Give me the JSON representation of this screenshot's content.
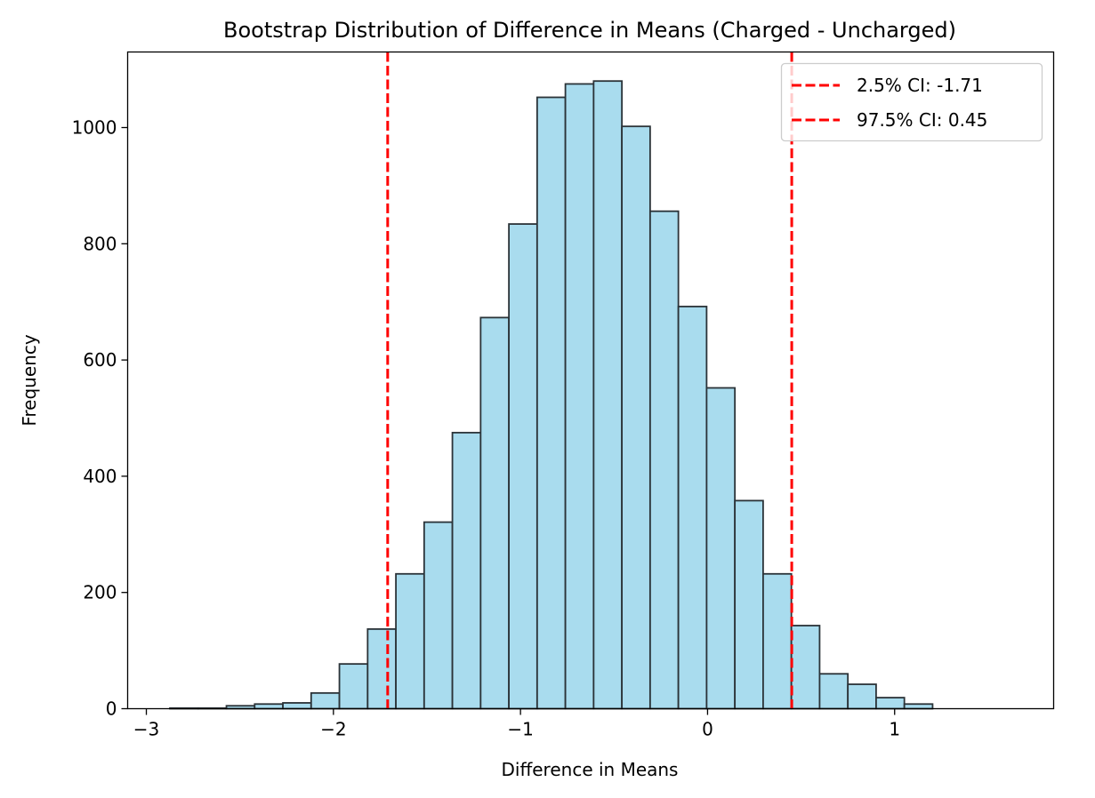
{
  "chart_data": {
    "type": "bar",
    "title": "Bootstrap Distribution of Difference in Means (Charged - Uncharged)",
    "xlabel": "Difference in Means",
    "ylabel": "Frequency",
    "xlim": [
      -3.1,
      1.85
    ],
    "ylim": [
      0,
      1130
    ],
    "x_ticks": [
      {
        "value": -3,
        "label": "−3"
      },
      {
        "value": -2,
        "label": "−2"
      },
      {
        "value": -1,
        "label": "−1"
      },
      {
        "value": 0,
        "label": "0"
      },
      {
        "value": 1,
        "label": "1"
      }
    ],
    "y_ticks": [
      {
        "value": 0,
        "label": "0"
      },
      {
        "value": 200,
        "label": "200"
      },
      {
        "value": 400,
        "label": "400"
      },
      {
        "value": 600,
        "label": "600"
      },
      {
        "value": 800,
        "label": "800"
      },
      {
        "value": 1000,
        "label": "1000"
      }
    ],
    "bin_width": 0.151,
    "bins": [
      {
        "x0": -2.874,
        "count": 1
      },
      {
        "x0": -2.723,
        "count": 1
      },
      {
        "x0": -2.572,
        "count": 5
      },
      {
        "x0": -2.421,
        "count": 8
      },
      {
        "x0": -2.27,
        "count": 10
      },
      {
        "x0": -2.119,
        "count": 27
      },
      {
        "x0": -1.968,
        "count": 77
      },
      {
        "x0": -1.817,
        "count": 137
      },
      {
        "x0": -1.666,
        "count": 232
      },
      {
        "x0": -1.515,
        "count": 321
      },
      {
        "x0": -1.364,
        "count": 475
      },
      {
        "x0": -1.213,
        "count": 673
      },
      {
        "x0": -1.062,
        "count": 834
      },
      {
        "x0": -0.911,
        "count": 1052
      },
      {
        "x0": -0.76,
        "count": 1075
      },
      {
        "x0": -0.609,
        "count": 1080
      },
      {
        "x0": -0.458,
        "count": 1002
      },
      {
        "x0": -0.307,
        "count": 856
      },
      {
        "x0": -0.156,
        "count": 692
      },
      {
        "x0": -0.005,
        "count": 552
      },
      {
        "x0": 0.146,
        "count": 358
      },
      {
        "x0": 0.297,
        "count": 232
      },
      {
        "x0": 0.448,
        "count": 143
      },
      {
        "x0": 0.599,
        "count": 60
      },
      {
        "x0": 0.75,
        "count": 42
      },
      {
        "x0": 0.901,
        "count": 19
      },
      {
        "x0": 1.052,
        "count": 8
      }
    ],
    "bar_fill": "#a9dcee",
    "bar_edge": "#2b3338",
    "reference_lines": [
      {
        "x": -1.71,
        "label": "2.5% CI: -1.71",
        "color": "#ff0000"
      },
      {
        "x": 0.45,
        "label": "97.5% CI: 0.45",
        "color": "#ff0000"
      }
    ],
    "legend_position": "upper right",
    "grid": false
  }
}
